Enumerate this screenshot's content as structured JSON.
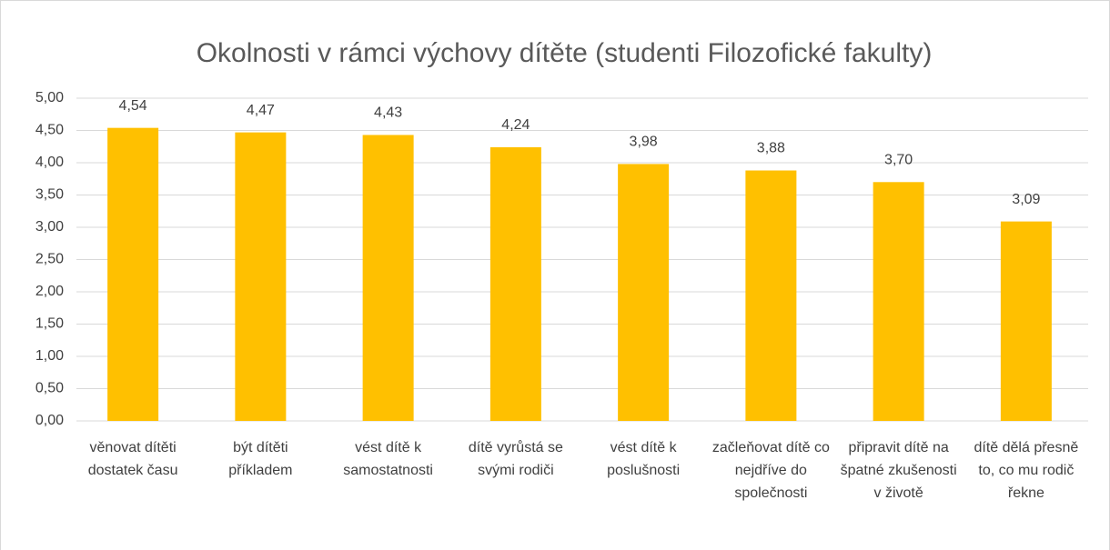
{
  "chart_data": {
    "type": "bar",
    "title": "Okolnosti v rámci výchovy dítěte (studenti Filozofické fakulty)",
    "categories": [
      "věnovat dítěti dostatek času",
      "být dítěti příkladem",
      "vést dítě k samostatnosti",
      "dítě vyrůstá se svými rodiči",
      "vést dítě k poslušnosti",
      "začleňovat dítě co nejdříve do společnosti",
      "připravit dítě na špatné zkušenosti v životě",
      "dítě dělá přesně to, co mu rodič řekne"
    ],
    "values": [
      4.54,
      4.47,
      4.43,
      4.24,
      3.98,
      3.88,
      3.7,
      3.09
    ],
    "value_labels": [
      "4,54",
      "4,47",
      "4,43",
      "4,24",
      "3,98",
      "3,88",
      "3,70",
      "3,09"
    ],
    "color": "#ffc000",
    "ylim": [
      0,
      5
    ],
    "yticks": [
      {
        "value": 0,
        "label": "0,00"
      },
      {
        "value": 0.5,
        "label": "0,50"
      },
      {
        "value": 1,
        "label": "1,00"
      },
      {
        "value": 1.5,
        "label": "1,50"
      },
      {
        "value": 2,
        "label": "2,00"
      },
      {
        "value": 2.5,
        "label": "2,50"
      },
      {
        "value": 3,
        "label": "3,00"
      },
      {
        "value": 3.5,
        "label": "3,50"
      },
      {
        "value": 4,
        "label": "4,00"
      },
      {
        "value": 4.5,
        "label": "4,50"
      },
      {
        "value": 5,
        "label": "5,00"
      }
    ],
    "grid": true
  }
}
